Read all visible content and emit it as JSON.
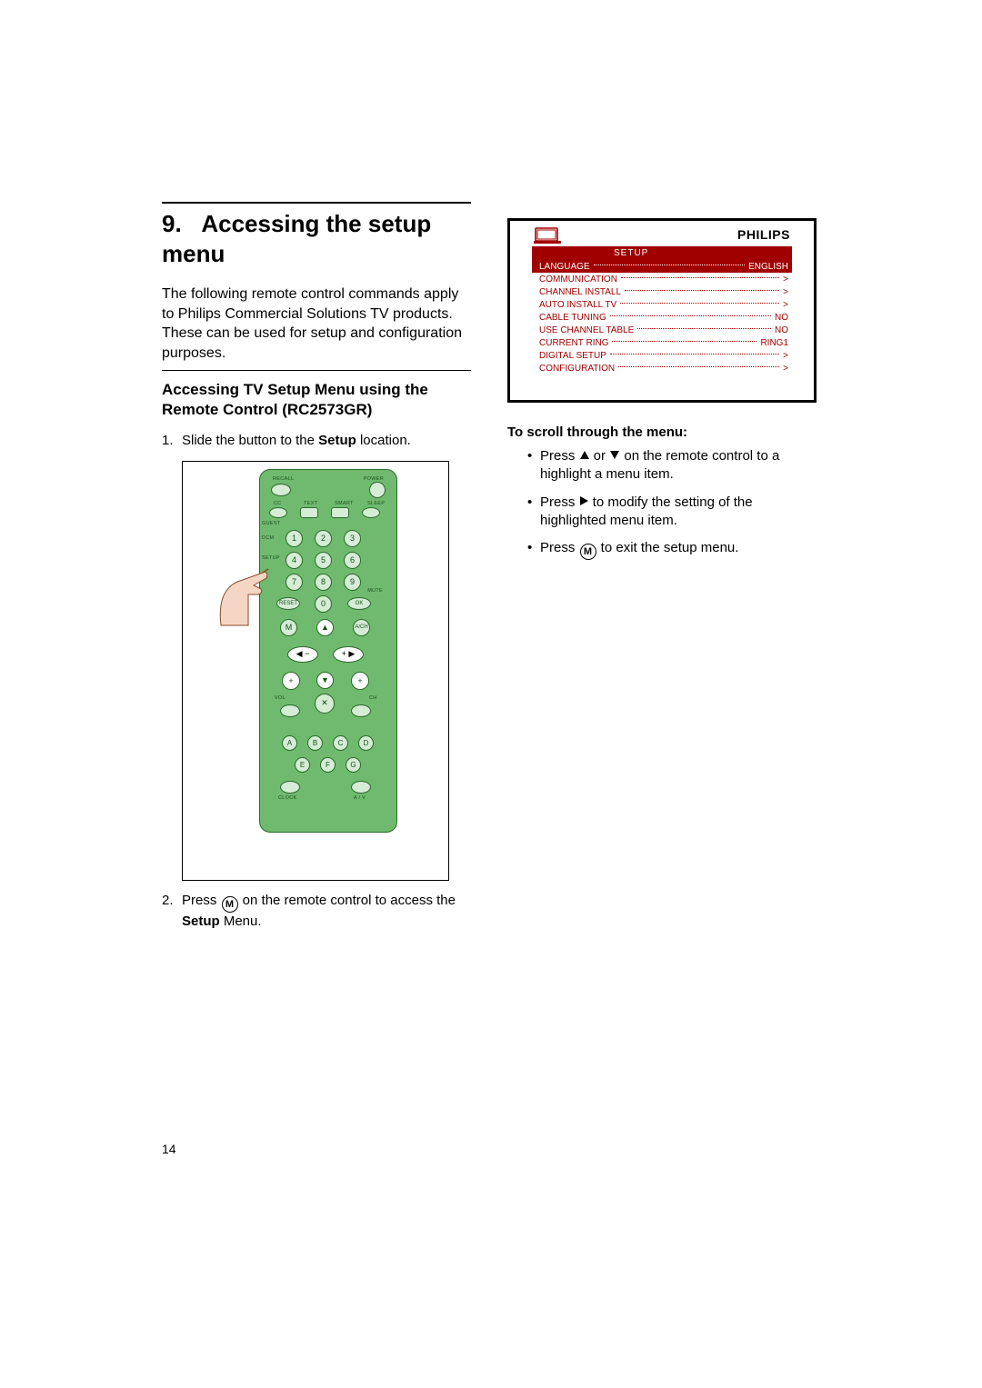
{
  "section": {
    "number": "9.",
    "title": "Accessing the setup menu"
  },
  "intro": "The following remote control commands apply to Philips Commercial Solutions TV products. These can be used for setup and configuration purposes.",
  "subheading": "Accessing TV Setup Menu using the Remote Control (RC2573GR)",
  "steps": {
    "s1_pre": "Slide the button to the ",
    "s1_bold": "Setup",
    "s1_post": " location.",
    "s2_pre": "Press ",
    "s2_mid": " on the remote control to access the ",
    "s2_bold": "Setup",
    "s2_post": " Menu."
  },
  "remote": {
    "labels": {
      "recall": "RECALL",
      "power": "POWER",
      "cc": "CC",
      "text": "TEXT",
      "smart": "SMART",
      "sleep": "SLEEP",
      "guest": "GUEST",
      "dcm": "DCM",
      "setup": "SETUP",
      "reset": "RESET",
      "ok": "OK",
      "mute": "MUTE",
      "m": "M",
      "ach": "A/CH",
      "vol": "VOL",
      "ch": "CH",
      "clock": "CLOCK",
      "av": "A / V",
      "a": "A",
      "b": "B",
      "c": "C",
      "d": "D",
      "e": "E",
      "f": "F",
      "g": "G"
    },
    "digits": [
      "1",
      "2",
      "3",
      "4",
      "5",
      "6",
      "7",
      "8",
      "9",
      "0"
    ],
    "colors": {
      "body": "#6fba6f",
      "button": "#d5ecd5",
      "border": "#2a6b2a",
      "text": "#1d4d1d"
    }
  },
  "osd": {
    "brand": "PHILIPS",
    "setup_label": "SETUP",
    "rows": [
      {
        "label": "LANGUAGE",
        "value": "ENGLISH",
        "selected": true
      },
      {
        "label": "COMMUNICATION",
        "value": ">",
        "selected": false
      },
      {
        "label": "CHANNEL INSTALL",
        "value": ">",
        "selected": false
      },
      {
        "label": "AUTO INSTALL TV",
        "value": ">",
        "selected": false
      },
      {
        "label": "CABLE TUNING",
        "value": "NO",
        "selected": false
      },
      {
        "label": "USE CHANNEL TABLE",
        "value": "NO",
        "selected": false
      },
      {
        "label": "CURRENT RING",
        "value": "RING1",
        "selected": false
      },
      {
        "label": "DIGITAL SETUP",
        "value": ">",
        "selected": false
      },
      {
        "label": "CONFIGURATION",
        "value": ">",
        "selected": false
      }
    ],
    "colors": {
      "accent": "#a10000",
      "text_on_accent": "#ffffff"
    }
  },
  "scroll": {
    "heading": "To scroll through the menu:",
    "b1_pre": "Press ",
    "b1_mid": " or ",
    "b1_post": " on the remote control to a highlight a menu item.",
    "b2_pre": "Press ",
    "b2_post": " to modify the setting of the highlighted menu item.",
    "b3_pre": "Press ",
    "b3_post": " to exit the setup menu."
  },
  "m_glyph": "M",
  "page_number": "14"
}
